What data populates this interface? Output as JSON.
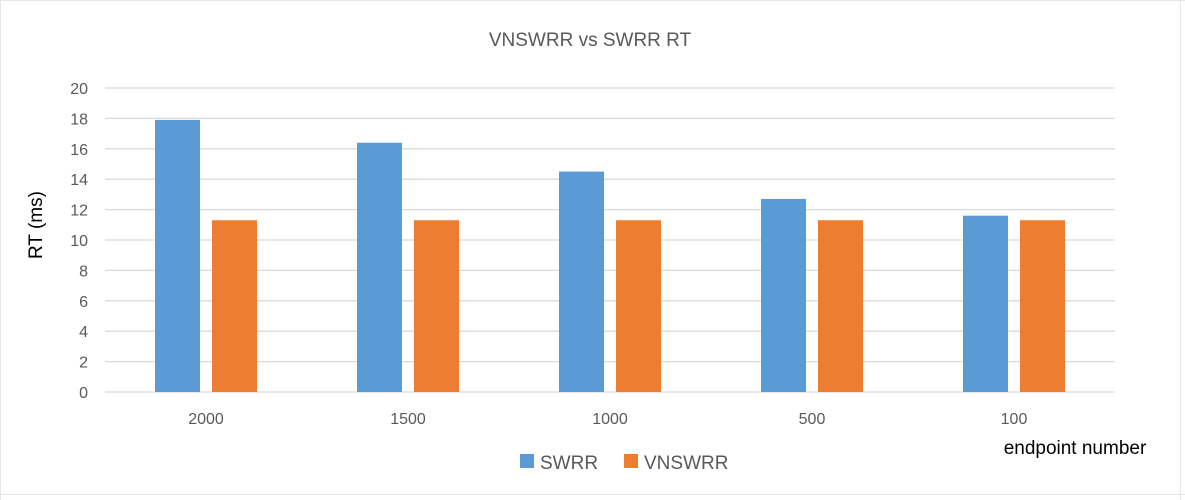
{
  "chart_data": {
    "type": "bar",
    "title": "VNSWRR vs SWRR RT",
    "xlabel": "endpoint number",
    "ylabel": "RT (ms)",
    "categories": [
      "2000",
      "1500",
      "1000",
      "500",
      "100"
    ],
    "series": [
      {
        "name": "SWRR",
        "color": "#5B9BD5",
        "values": [
          17.9,
          16.4,
          14.5,
          12.7,
          11.6
        ]
      },
      {
        "name": "VNSWRR",
        "color": "#ED7D31",
        "values": [
          11.3,
          11.3,
          11.3,
          11.3,
          11.3
        ]
      }
    ],
    "ylim": [
      0,
      20
    ],
    "yticks": [
      "0",
      "2",
      "4",
      "6",
      "8",
      "10",
      "12",
      "14",
      "16",
      "18",
      "20"
    ],
    "grid": true,
    "legend": "bottom"
  }
}
